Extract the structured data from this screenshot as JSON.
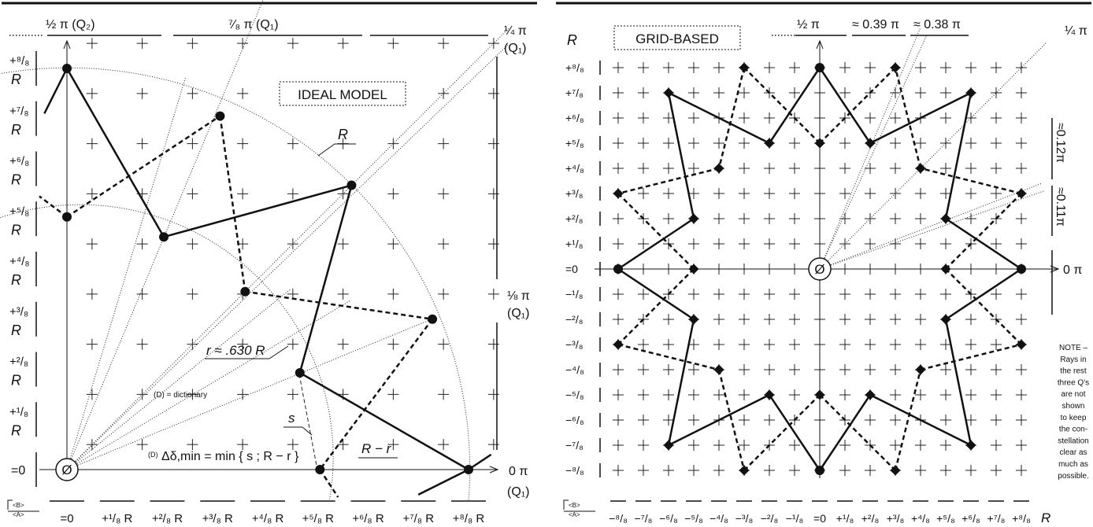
{
  "left": {
    "top_angle_labels": {
      "half_pi": "½ π (Q₂)",
      "seven_eighths_pi": "⁷⁄₈ π (Q₁)",
      "quarter_pi": "¼ π",
      "quarter_pi_quadrant": "(Q₁)"
    },
    "side_angle_labels": {
      "eighth_pi": "⅛ π",
      "eighth_pi_quadrant": "(Q₁)",
      "zero_pi": "0 π",
      "zero_pi_quadrant": "(Q₁)"
    },
    "model_box": "IDEAL MODEL",
    "circle_label": "R",
    "r_label": "r ≈ .630 R",
    "s_label": "s",
    "r_minus_r_label": "R − r",
    "dictionary_note": "(D) = dictionary",
    "delta_formula": "Δδ,min = min { s ; R − r }",
    "delta_prefix": "(D)",
    "origin_symbol": "Ø",
    "axis_marks": {
      "b": "<B>",
      "a": "<A>"
    },
    "y_labels": [
      "=0",
      "+¹/₈",
      "+²/₈",
      "+³/₈",
      "+⁴/₈",
      "+⁵/₈",
      "+⁶/₈",
      "+⁷/₈",
      "+⁸/₈"
    ],
    "y_unit": "R",
    "x_labels": [
      "=0",
      "+¹/₈ R",
      "+²/₈ R",
      "+³/₈ R",
      "+⁴/₈ R",
      "+⁵/₈ R",
      "+⁶/₈ R",
      "+⁷/₈ R",
      "+⁸/₈ R"
    ]
  },
  "right": {
    "model_box": "GRID-BASED",
    "r_axis_label": "R",
    "top_angle_labels": {
      "half_pi": "½ π",
      "approx_039": "≈ 0.39 π",
      "approx_038": "≈ 0.38 π",
      "quarter_pi": "¼ π"
    },
    "side_angle_labels": {
      "approx_012": "≈0.12π",
      "approx_011": "≈0.11π",
      "zero_pi": "0 π"
    },
    "origin_symbol": "Ø",
    "axis_marks": {
      "b": "<B>",
      "a": "<A>"
    },
    "y_labels": [
      "+⁸/₈",
      "+⁷/₈",
      "+⁶/₈",
      "+⁵/₈",
      "+⁴/₈",
      "+³/₈",
      "+²/₈",
      "+¹/₈",
      "=0",
      "−¹/₈",
      "−²/₈",
      "−³/₈",
      "−⁴/₈",
      "−⁵/₈",
      "−⁶/₈",
      "−⁷/₈",
      "−⁸/₈"
    ],
    "x_labels": [
      "−⁸/₈",
      "−⁷/₈",
      "−⁶/₈",
      "−⁵/₈",
      "−⁴/₈",
      "−³/₈",
      "−²/₈",
      "−¹/₈",
      "=0",
      "+¹/₈",
      "+²/₈",
      "+³/₈",
      "+⁴/₈",
      "+⁵/₈",
      "+⁶/₈",
      "+⁷/₈",
      "+⁸/₈"
    ],
    "x_unit": "R",
    "note_lines": [
      "NOTE –",
      "Rays in",
      "the rest",
      "three Q's",
      "are not",
      "shown",
      "to keep",
      "the con-",
      "stellation",
      "clear as",
      "much as",
      "possible."
    ]
  }
}
